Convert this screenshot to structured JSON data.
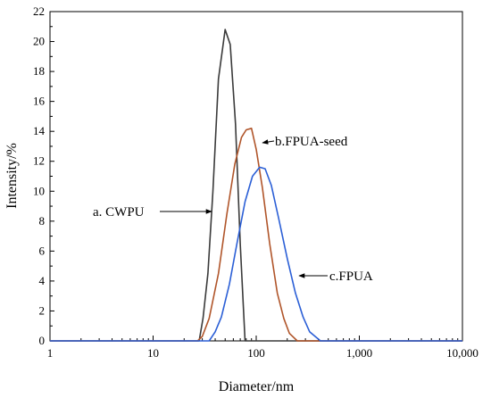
{
  "chart_data": {
    "type": "line",
    "xlabel": "Diameter/nm",
    "ylabel": "Intensity/%",
    "xscale": "log",
    "xlim": [
      1,
      10000
    ],
    "ylim": [
      0,
      22
    ],
    "xticks": [
      1,
      10,
      100,
      1000,
      10000
    ],
    "xtick_labels": [
      "1",
      "10",
      "100",
      "1,000",
      "10,000"
    ],
    "yticks": [
      0,
      2,
      4,
      6,
      8,
      10,
      12,
      14,
      16,
      18,
      20,
      22
    ],
    "ytick_labels": [
      "0",
      "2",
      "4",
      "6",
      "8",
      "10",
      "12",
      "14",
      "16",
      "18",
      "20",
      "22"
    ],
    "grid": false,
    "legend": "none",
    "series": [
      {
        "color": "#3a3a3a",
        "points": [
          [
            1,
            0
          ],
          [
            28,
            0
          ],
          [
            30.5,
            1.5
          ],
          [
            34,
            4.5
          ],
          [
            38,
            10
          ],
          [
            43,
            17.5
          ],
          [
            50,
            20.8
          ],
          [
            56,
            19.8
          ],
          [
            63,
            14.5
          ],
          [
            70,
            6.5
          ],
          [
            78,
            0
          ],
          [
            10000,
            0
          ]
        ]
      },
      {
        "color": "#b0552a",
        "points": [
          [
            1,
            0
          ],
          [
            27,
            0
          ],
          [
            30,
            0.3
          ],
          [
            35,
            1.5
          ],
          [
            43,
            4.5
          ],
          [
            52,
            8.5
          ],
          [
            62,
            11.8
          ],
          [
            72,
            13.6
          ],
          [
            80,
            14.1
          ],
          [
            90,
            14.2
          ],
          [
            100,
            12.8
          ],
          [
            115,
            10.2
          ],
          [
            135,
            6.5
          ],
          [
            160,
            3.2
          ],
          [
            185,
            1.5
          ],
          [
            210,
            0.5
          ],
          [
            250,
            0
          ],
          [
            10000,
            0
          ]
        ]
      },
      {
        "color": "#2b5fd6",
        "points": [
          [
            1,
            0
          ],
          [
            35,
            0
          ],
          [
            40,
            0.6
          ],
          [
            46,
            1.6
          ],
          [
            55,
            3.8
          ],
          [
            65,
            6.5
          ],
          [
            78,
            9.3
          ],
          [
            92,
            11.0
          ],
          [
            108,
            11.6
          ],
          [
            122,
            11.5
          ],
          [
            140,
            10.4
          ],
          [
            165,
            8.2
          ],
          [
            200,
            5.5
          ],
          [
            240,
            3.2
          ],
          [
            285,
            1.6
          ],
          [
            330,
            0.6
          ],
          [
            420,
            0
          ],
          [
            10000,
            0
          ]
        ]
      }
    ],
    "annotations": [
      {
        "text": "a. CWPU",
        "arrow_to": [
          38,
          10
        ]
      },
      {
        "text": "b.FPUA-seed",
        "arrow_to": [
          100,
          12.7
        ]
      },
      {
        "text": "c.FPUA",
        "arrow_to": [
          235,
          3.7
        ]
      }
    ]
  }
}
